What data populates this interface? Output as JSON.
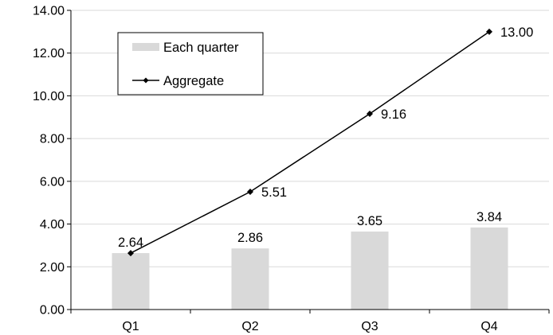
{
  "chart_data": {
    "type": "bar",
    "title": "",
    "xlabel": "",
    "ylabel": "",
    "categories": [
      "Q1",
      "Q2",
      "Q3",
      "Q4"
    ],
    "ylim": [
      0,
      14
    ],
    "ytick_labels": [
      "0.00",
      "2.00",
      "4.00",
      "6.00",
      "8.00",
      "10.00",
      "12.00",
      "14.00"
    ],
    "grid": true,
    "legend_position": "top-left",
    "series": [
      {
        "name": "Each quarter",
        "type": "bar",
        "color": "#d9d9d9",
        "values": [
          2.64,
          2.86,
          3.65,
          3.84
        ],
        "data_labels": [
          "2.64",
          "2.86",
          "3.65",
          "3.84"
        ]
      },
      {
        "name": "Aggregate",
        "type": "line",
        "color": "#000000",
        "marker": "diamond",
        "values": [
          2.64,
          5.51,
          9.16,
          13.0
        ],
        "data_labels": [
          "",
          "5.51",
          "9.16",
          "13.00"
        ]
      }
    ]
  }
}
